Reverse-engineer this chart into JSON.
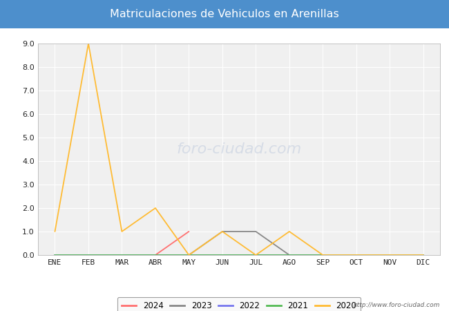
{
  "title": "Matriculaciones de Vehiculos en Arenillas",
  "title_bg_color": "#4d8fcc",
  "title_text_color": "#ffffff",
  "months": [
    "ENE",
    "FEB",
    "MAR",
    "ABR",
    "MAY",
    "JUN",
    "JUL",
    "AGO",
    "SEP",
    "OCT",
    "NOV",
    "DIC"
  ],
  "ylim": [
    0.0,
    9.0
  ],
  "yticks": [
    0.0,
    1.0,
    2.0,
    3.0,
    4.0,
    5.0,
    6.0,
    7.0,
    8.0,
    9.0
  ],
  "series": {
    "2024": {
      "color": "#ff7070",
      "data": [
        0,
        0,
        0,
        0,
        1,
        null,
        null,
        null,
        null,
        null,
        null,
        null
      ]
    },
    "2023": {
      "color": "#888888",
      "data": [
        0,
        0,
        0,
        0,
        0,
        1,
        1,
        0,
        0,
        0,
        0,
        0
      ]
    },
    "2022": {
      "color": "#7777ee",
      "data": [
        0,
        0,
        0,
        0,
        0,
        0,
        0,
        0,
        0,
        0,
        0,
        0
      ]
    },
    "2021": {
      "color": "#55bb55",
      "data": [
        0,
        0,
        0,
        0,
        0,
        0,
        0,
        0,
        0,
        0,
        0,
        0
      ]
    },
    "2020": {
      "color": "#ffbb33",
      "data": [
        1,
        9,
        1,
        2,
        0,
        1,
        0,
        1,
        0,
        0,
        0,
        0
      ]
    }
  },
  "plot_bg_color": "#f0f0f0",
  "fig_bg_color": "#ffffff",
  "grid_color": "#ffffff",
  "url_text": "http://www.foro-ciudad.com",
  "watermark_text": "foro-ciudad.com",
  "watermark_color": "#c5cfe0"
}
